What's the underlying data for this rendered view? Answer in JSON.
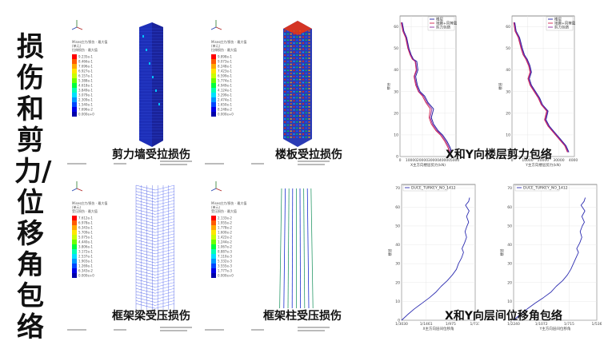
{
  "page": {
    "vertical_title": "损伤和剪力/位移角包络"
  },
  "contours": [
    {
      "caption": "剪力墙受拉损伤",
      "legend_header": [
        "Mises应力/损伤 · 最大值",
        "(单元)",
        "拉伸损伤 · 最大值"
      ],
      "legend_values": [
        "9.235e-1",
        "8.466e-1",
        "7.696e-1",
        "6.927e-1",
        "6.157e-1",
        "5.388e-1",
        "4.618e-1",
        "3.849e-1",
        "3.079e-1",
        "2.309e-1",
        "1.540e-1",
        "7.696e-2",
        "0.000e+0"
      ]
    },
    {
      "caption": "楼板受拉损伤",
      "legend_header": [
        "Mises应力/损伤 · 最大值",
        "(单元)",
        "拉伸损伤 · 最大值"
      ],
      "legend_values": [
        "9.898e-1",
        "9.073e-1",
        "8.248e-1",
        "7.423e-1",
        "6.599e-1",
        "5.774e-1",
        "4.949e-1",
        "4.124e-1",
        "3.299e-1",
        "2.474e-1",
        "1.650e-1",
        "8.248e-2",
        "0.000e+0"
      ]
    },
    {
      "caption": "框架梁受压损伤",
      "legend_header": [
        "Mises应力/损伤 · 最大值",
        "(单元)",
        "受压损伤 · 最大值"
      ],
      "legend_values": [
        "7.612e-1",
        "6.978e-1",
        "6.343e-1",
        "5.709e-1",
        "5.075e-1",
        "4.440e-1",
        "3.806e-1",
        "3.172e-1",
        "2.537e-1",
        "1.903e-1",
        "1.269e-1",
        "6.343e-2",
        "0.000e+0"
      ]
    },
    {
      "caption": "框架柱受压损伤",
      "legend_header": [
        "Mises应力/损伤 · 最大值",
        "(单元)",
        "受压损伤 · 最大值"
      ],
      "legend_values": [
        "2.133e-2",
        "1.955e-2",
        "1.778e-2",
        "1.600e-2",
        "1.422e-2",
        "1.244e-2",
        "1.067e-2",
        "8.887e-3",
        "7.110e-3",
        "5.332e-3",
        "3.555e-3",
        "1.777e-3",
        "0.000e+0"
      ]
    }
  ],
  "charts_captions": {
    "shear": "X和Y向楼层剪力包络",
    "drift": "X和Y向层间位移角包络"
  },
  "chart_data": [
    {
      "type": "line",
      "ylabel": "楼层",
      "xlabel": "X主方向楼层剪力(kN)",
      "x_ticks": [
        "0",
        "10000",
        "20000",
        "30000",
        "40000",
        "50000"
      ],
      "y_ticks": [
        "0",
        "10",
        "20",
        "30",
        "40",
        "50",
        "60"
      ],
      "xlim": [
        0,
        50000
      ],
      "ylim": [
        0,
        65
      ],
      "legend": [
        "楼层",
        "地震+风荷载",
        "剪力包络"
      ],
      "series": [
        {
          "name": "楼层",
          "color": "#1a1aa0",
          "points": [
            [
              2000,
              62
            ],
            [
              3500,
              58
            ],
            [
              6000,
              55
            ],
            [
              8000,
              50
            ],
            [
              10000,
              47
            ],
            [
              12000,
              45
            ],
            [
              15000,
              44
            ],
            [
              16000,
              40
            ],
            [
              14000,
              37
            ],
            [
              15500,
              33
            ],
            [
              18000,
              30
            ],
            [
              22000,
              28
            ],
            [
              25000,
              25
            ],
            [
              30000,
              22
            ],
            [
              28000,
              18
            ],
            [
              30000,
              15
            ],
            [
              34000,
              12
            ],
            [
              38000,
              10
            ],
            [
              42000,
              7
            ],
            [
              45000,
              4
            ],
            [
              46000,
              2
            ]
          ]
        },
        {
          "name": "地震+风荷载",
          "color": "#d01d4a",
          "points": [
            [
              1000,
              62
            ],
            [
              2500,
              58
            ],
            [
              5000,
              55
            ],
            [
              7000,
              50
            ],
            [
              9000,
              47
            ],
            [
              11000,
              45
            ],
            [
              13500,
              44
            ],
            [
              14500,
              40
            ],
            [
              12500,
              37
            ],
            [
              14000,
              33
            ],
            [
              16500,
              30
            ],
            [
              20000,
              28
            ],
            [
              23000,
              25
            ],
            [
              27000,
              22
            ],
            [
              26000,
              18
            ],
            [
              28000,
              15
            ],
            [
              32000,
              12
            ],
            [
              36000,
              10
            ],
            [
              40000,
              7
            ],
            [
              43000,
              4
            ],
            [
              44000,
              2
            ]
          ]
        },
        {
          "name": "剪力包络",
          "color": "#8f2a9e",
          "points": [
            [
              1500,
              62
            ],
            [
              3000,
              58
            ],
            [
              5500,
              55
            ],
            [
              7500,
              50
            ],
            [
              9500,
              47
            ],
            [
              11500,
              45
            ],
            [
              14000,
              44
            ],
            [
              15000,
              40
            ],
            [
              13000,
              37
            ],
            [
              14800,
              33
            ],
            [
              17000,
              30
            ],
            [
              21000,
              28
            ],
            [
              24000,
              25
            ],
            [
              28500,
              22
            ],
            [
              27000,
              18
            ],
            [
              29000,
              15
            ],
            [
              33000,
              12
            ],
            [
              37000,
              10
            ],
            [
              41000,
              7
            ],
            [
              44000,
              4
            ],
            [
              45000,
              2
            ]
          ]
        }
      ]
    },
    {
      "type": "line",
      "ylabel": "楼层",
      "xlabel": "Y主方向楼层剪力(kN)",
      "x_ticks": [
        "0",
        "10000",
        "20000",
        "30000",
        "40000"
      ],
      "y_ticks": [
        "0",
        "10",
        "20",
        "30",
        "40",
        "50",
        "60"
      ],
      "xlim": [
        0,
        45000
      ],
      "ylim": [
        0,
        65
      ],
      "legend": [
        "楼层",
        "地震+风荷载",
        "剪力包络"
      ],
      "series": [
        {
          "name": "楼层",
          "color": "#1a1aa0",
          "points": [
            [
              2000,
              62
            ],
            [
              3000,
              58
            ],
            [
              5500,
              55
            ],
            [
              7500,
              50
            ],
            [
              9000,
              47
            ],
            [
              11000,
              45
            ],
            [
              13000,
              42
            ],
            [
              14000,
              39
            ],
            [
              12500,
              36
            ],
            [
              14000,
              33
            ],
            [
              17000,
              30
            ],
            [
              20000,
              27
            ],
            [
              22000,
              24
            ],
            [
              26000,
              21
            ],
            [
              24500,
              17
            ],
            [
              27000,
              14
            ],
            [
              31000,
              11
            ],
            [
              35000,
              8
            ],
            [
              39000,
              5
            ],
            [
              41000,
              2
            ]
          ]
        },
        {
          "name": "地震+风荷载",
          "color": "#d01d4a",
          "points": [
            [
              1200,
              62
            ],
            [
              2200,
              58
            ],
            [
              4500,
              55
            ],
            [
              6500,
              50
            ],
            [
              8000,
              47
            ],
            [
              10000,
              45
            ],
            [
              12000,
              42
            ],
            [
              13000,
              39
            ],
            [
              11500,
              36
            ],
            [
              13000,
              33
            ],
            [
              16000,
              30
            ],
            [
              19000,
              27
            ],
            [
              21000,
              24
            ],
            [
              25000,
              21
            ],
            [
              23500,
              17
            ],
            [
              26000,
              14
            ],
            [
              30000,
              11
            ],
            [
              34000,
              8
            ],
            [
              38000,
              5
            ],
            [
              40000,
              2
            ]
          ]
        },
        {
          "name": "剪力包络",
          "color": "#8f2a9e",
          "points": [
            [
              1600,
              62
            ],
            [
              2600,
              58
            ],
            [
              5000,
              55
            ],
            [
              7000,
              50
            ],
            [
              8500,
              47
            ],
            [
              10500,
              45
            ],
            [
              12500,
              42
            ],
            [
              13500,
              39
            ],
            [
              12000,
              36
            ],
            [
              13500,
              33
            ],
            [
              16500,
              30
            ],
            [
              19500,
              27
            ],
            [
              21500,
              24
            ],
            [
              25500,
              21
            ],
            [
              24000,
              17
            ],
            [
              26500,
              14
            ],
            [
              30500,
              11
            ],
            [
              34500,
              8
            ],
            [
              38500,
              5
            ],
            [
              40500,
              2
            ]
          ]
        }
      ]
    },
    {
      "type": "line",
      "ylabel": "楼层",
      "xlabel": "X主方向层间位移角",
      "x_ticks": [
        "1/3030",
        "1/1461",
        "1/975",
        "1/731"
      ],
      "y_ticks": [
        "0",
        "10",
        "20",
        "30",
        "40",
        "50",
        "60",
        "70"
      ],
      "xlim": [
        0,
        0.00145
      ],
      "ylim": [
        0,
        72
      ],
      "legend": [
        "DUCE_TURKEY_NO_1412"
      ],
      "series": [
        {
          "name": "DUCE_TURKEY_NO_1412",
          "color": "#2b2bb0",
          "points": [
            [
              0.0,
              0
            ],
            [
              0.00012,
              3
            ],
            [
              0.00025,
              6
            ],
            [
              0.0004,
              9
            ],
            [
              0.00055,
              12
            ],
            [
              0.00068,
              15
            ],
            [
              0.00078,
              18
            ],
            [
              0.0009,
              21
            ],
            [
              0.001,
              24
            ],
            [
              0.00108,
              27
            ],
            [
              0.00112,
              30
            ],
            [
              0.00118,
              33
            ],
            [
              0.00122,
              36
            ],
            [
              0.00119,
              38
            ],
            [
              0.00124,
              41
            ],
            [
              0.00128,
              44
            ],
            [
              0.00125,
              47
            ],
            [
              0.00129,
              50
            ],
            [
              0.00132,
              52
            ],
            [
              0.00128,
              55
            ],
            [
              0.00133,
              58
            ],
            [
              0.00126,
              61
            ],
            [
              0.00132,
              63
            ],
            [
              0.00134,
              65
            ]
          ]
        }
      ]
    },
    {
      "type": "line",
      "ylabel": "楼层",
      "xlabel": "Y主方向层间位移角",
      "x_ticks": [
        "1/2240",
        "1/1072",
        "1/715",
        "1/536"
      ],
      "y_ticks": [
        "0",
        "10",
        "20",
        "30",
        "40",
        "50",
        "60",
        "70"
      ],
      "xlim": [
        0,
        0.00195
      ],
      "ylim": [
        0,
        72
      ],
      "legend": [
        "DUCE_TURKEY_NO_1412"
      ],
      "series": [
        {
          "name": "DUCE_TURKEY_NO_1412",
          "color": "#2b2bb0",
          "points": [
            [
              0.0,
              0
            ],
            [
              0.00015,
              3
            ],
            [
              0.00032,
              6
            ],
            [
              0.0005,
              9
            ],
            [
              0.0007,
              12
            ],
            [
              0.00088,
              15
            ],
            [
              0.001,
              18
            ],
            [
              0.00115,
              21
            ],
            [
              0.00126,
              24
            ],
            [
              0.00134,
              27
            ],
            [
              0.0014,
              30
            ],
            [
              0.00146,
              33
            ],
            [
              0.00152,
              36
            ],
            [
              0.00148,
              38
            ],
            [
              0.00155,
              41
            ],
            [
              0.0016,
              44
            ],
            [
              0.00156,
              47
            ],
            [
              0.00161,
              50
            ],
            [
              0.00166,
              52
            ],
            [
              0.0016,
              55
            ],
            [
              0.00167,
              58
            ],
            [
              0.00158,
              61
            ],
            [
              0.00165,
              63
            ],
            [
              0.00168,
              65
            ]
          ]
        }
      ]
    }
  ],
  "colors": {
    "contour_scale": [
      "#ff0000",
      "#ff5a00",
      "#ffa800",
      "#ffe600",
      "#c8ff00",
      "#6cff00",
      "#00ff3c",
      "#00ffb4",
      "#00e0ff",
      "#0096ff",
      "#0046ff",
      "#0000e6",
      "#0000aa"
    ]
  }
}
